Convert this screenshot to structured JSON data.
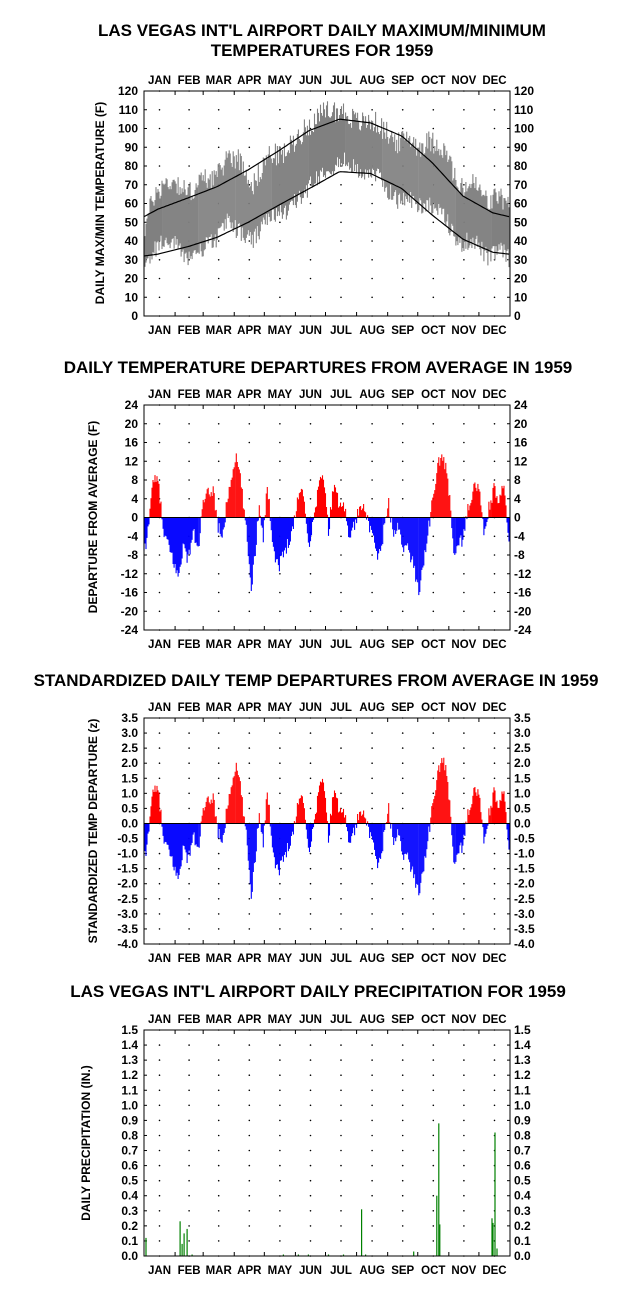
{
  "months": [
    "JAN",
    "FEB",
    "MAR",
    "APR",
    "MAY",
    "JUN",
    "JUL",
    "AUG",
    "SEP",
    "OCT",
    "NOV",
    "DEC"
  ],
  "colors": {
    "range_fill": "#808080",
    "avg_line": "#000000",
    "positive": "#ff0000",
    "negative": "#0000ff",
    "precip": "#008000"
  },
  "chart_data": [
    {
      "type": "area",
      "title": "LAS VEGAS INT'L AIRPORT DAILY MAXIMUM/MINIMUM",
      "subtitle": "TEMPERATURES FOR 1959",
      "ylabel": "DAILY MAX/MIN TEMPERATURE (F)",
      "ylim": [
        0,
        120
      ],
      "yticks": [
        0,
        10,
        20,
        30,
        40,
        50,
        60,
        70,
        80,
        90,
        100,
        110,
        120
      ],
      "grid": "dotted",
      "normal_high": {
        "x_day": [
          1,
          15,
          45,
          74,
          105,
          135,
          166,
          196,
          227,
          258,
          288,
          319,
          349,
          365
        ],
        "values": [
          53,
          57,
          63,
          69,
          78,
          88,
          99,
          105,
          103,
          96,
          82,
          64,
          55,
          53
        ]
      },
      "normal_low": {
        "x_day": [
          1,
          15,
          45,
          74,
          105,
          135,
          166,
          196,
          227,
          258,
          288,
          319,
          349,
          365
        ],
        "values": [
          32,
          33,
          37,
          42,
          50,
          59,
          68,
          77,
          76,
          68,
          54,
          41,
          34,
          33
        ]
      },
      "daily_range_anchors": {
        "x_day": [
          1,
          10,
          20,
          32,
          45,
          60,
          75,
          85,
          95,
          110,
          125,
          140,
          155,
          170,
          185,
          195,
          200,
          215,
          230,
          245,
          255,
          265,
          275,
          285,
          295,
          305,
          315,
          330,
          345,
          355,
          365
        ],
        "max": [
          45,
          63,
          70,
          72,
          65,
          73,
          75,
          86,
          84,
          70,
          86,
          86,
          96,
          104,
          110,
          109,
          109,
          103,
          104,
          97,
          92,
          96,
          90,
          93,
          92,
          84,
          67,
          71,
          60,
          65,
          57
        ],
        "min": [
          23,
          35,
          40,
          38,
          31,
          36,
          42,
          52,
          45,
          40,
          52,
          55,
          62,
          72,
          80,
          80,
          83,
          77,
          77,
          67,
          61,
          63,
          59,
          60,
          56,
          49,
          38,
          41,
          30,
          36,
          31
        ]
      }
    },
    {
      "type": "bar",
      "title": "DAILY TEMPERATURE DEPARTURES FROM AVERAGE IN 1959",
      "ylabel": "DEPARTURE FROM AVERAGE (F)",
      "ylim": [
        -24,
        24
      ],
      "yticks": [
        -24,
        -20,
        -16,
        -12,
        -8,
        -4,
        0,
        4,
        8,
        12,
        16,
        20,
        24
      ],
      "grid": "dotted",
      "anchors": {
        "x_day": [
          1,
          4,
          8,
          12,
          16,
          20,
          25,
          30,
          35,
          40,
          45,
          50,
          55,
          60,
          65,
          70,
          75,
          80,
          84,
          88,
          92,
          96,
          100,
          104,
          108,
          112,
          116,
          120,
          124,
          128,
          132,
          136,
          140,
          145,
          150,
          155,
          160,
          165,
          170,
          175,
          180,
          185,
          190,
          195,
          200,
          205,
          210,
          215,
          220,
          225,
          230,
          235,
          240,
          245,
          250,
          255,
          260,
          265,
          270,
          275,
          280,
          285,
          290,
          295,
          300,
          305,
          310,
          315,
          320,
          325,
          330,
          335,
          340,
          345,
          350,
          355,
          360,
          365
        ],
        "values": [
          -8,
          -5,
          5,
          8,
          7,
          -3,
          -6,
          -9,
          -13,
          -6,
          -9,
          -3,
          -7,
          3,
          5,
          6,
          -2,
          -4,
          4,
          8,
          13,
          10,
          3,
          -5,
          -15,
          -7,
          3,
          -4,
          7,
          -2,
          -9,
          -10,
          -8,
          -5,
          -2,
          5,
          6,
          -6,
          -1,
          7,
          9,
          -3,
          7,
          3,
          4,
          -4,
          -2,
          1,
          4,
          -2,
          -5,
          -9,
          -3,
          3,
          -4,
          -2,
          -6,
          -7,
          -10,
          -16,
          -9,
          -2,
          5,
          12,
          13,
          6,
          -7,
          -6,
          -4,
          3,
          6,
          7,
          -4,
          2,
          6,
          3,
          7,
          -4
        ]
      }
    },
    {
      "type": "bar",
      "title": "STANDARDIZED DAILY TEMP DEPARTURES FROM AVERAGE IN 1959",
      "ylabel": "STANDARDIZED TEMP DEPARTURE (z)",
      "ylim": [
        -4.0,
        3.5
      ],
      "yticks": [
        "-4.0",
        "-3.5",
        "-3.0",
        "-2.5",
        "-2.0",
        "-1.5",
        "-1.0",
        "-0.5",
        "0.0",
        "0.5",
        "1.0",
        "1.5",
        "2.0",
        "2.5",
        "3.0",
        "3.5"
      ],
      "grid": "dotted",
      "anchors": {
        "x_day": [
          1,
          4,
          8,
          12,
          16,
          20,
          25,
          30,
          35,
          40,
          45,
          50,
          55,
          60,
          65,
          70,
          75,
          80,
          84,
          88,
          92,
          96,
          100,
          104,
          108,
          112,
          116,
          120,
          124,
          128,
          132,
          136,
          140,
          145,
          150,
          155,
          160,
          165,
          170,
          175,
          180,
          185,
          190,
          195,
          200,
          205,
          210,
          215,
          220,
          225,
          230,
          235,
          240,
          245,
          250,
          255,
          260,
          265,
          270,
          275,
          280,
          285,
          290,
          295,
          300,
          305,
          310,
          315,
          320,
          325,
          330,
          335,
          340,
          345,
          350,
          355,
          360,
          365
        ],
        "values": [
          -1.3,
          -0.8,
          0.7,
          1.1,
          1.0,
          -0.5,
          -0.9,
          -1.3,
          -1.9,
          -0.8,
          -1.2,
          -0.4,
          -0.9,
          0.4,
          0.7,
          0.9,
          -0.3,
          -0.6,
          0.6,
          1.2,
          1.9,
          1.5,
          0.4,
          -0.7,
          -2.4,
          -1.1,
          0.4,
          -0.6,
          1.1,
          -0.3,
          -1.4,
          -1.5,
          -1.2,
          -0.7,
          -0.3,
          0.8,
          0.9,
          -0.9,
          -0.2,
          1.1,
          1.5,
          -0.5,
          1.1,
          0.5,
          0.6,
          -0.6,
          -0.3,
          0.2,
          0.6,
          -0.3,
          -0.8,
          -1.5,
          -0.5,
          0.5,
          -0.7,
          -0.3,
          -1.0,
          -1.2,
          -1.7,
          -2.3,
          -1.4,
          -0.3,
          0.8,
          1.8,
          2.2,
          1.0,
          -1.2,
          -1.0,
          -0.6,
          0.5,
          1.0,
          1.1,
          -0.7,
          0.3,
          1.0,
          0.5,
          1.1,
          -0.7
        ]
      }
    },
    {
      "type": "bar",
      "title": "LAS VEGAS INT'L AIRPORT DAILY PRECIPITATION FOR 1959",
      "ylabel": "DAILY PRECIPITATION (IN.)",
      "ylim": [
        0.0,
        1.5
      ],
      "yticks": [
        "0.0",
        "0.1",
        "0.2",
        "0.3",
        "0.4",
        "0.5",
        "0.6",
        "0.7",
        "0.8",
        "0.9",
        "1.0",
        "1.1",
        "1.2",
        "1.3",
        "1.4",
        "1.5"
      ],
      "grid": "dotted",
      "x_day": [
        3,
        37,
        39,
        41,
        44,
        49,
        140,
        155,
        165,
        185,
        200,
        218,
        222,
        270,
        293,
        295,
        296,
        348,
        349,
        351,
        353
      ],
      "values": [
        0.12,
        0.23,
        0.08,
        0.15,
        0.18,
        0.01,
        0.01,
        0.01,
        0.01,
        0.01,
        0.01,
        0.31,
        0.01,
        0.03,
        0.4,
        0.88,
        0.21,
        0.25,
        0.22,
        0.82,
        0.05
      ]
    }
  ]
}
